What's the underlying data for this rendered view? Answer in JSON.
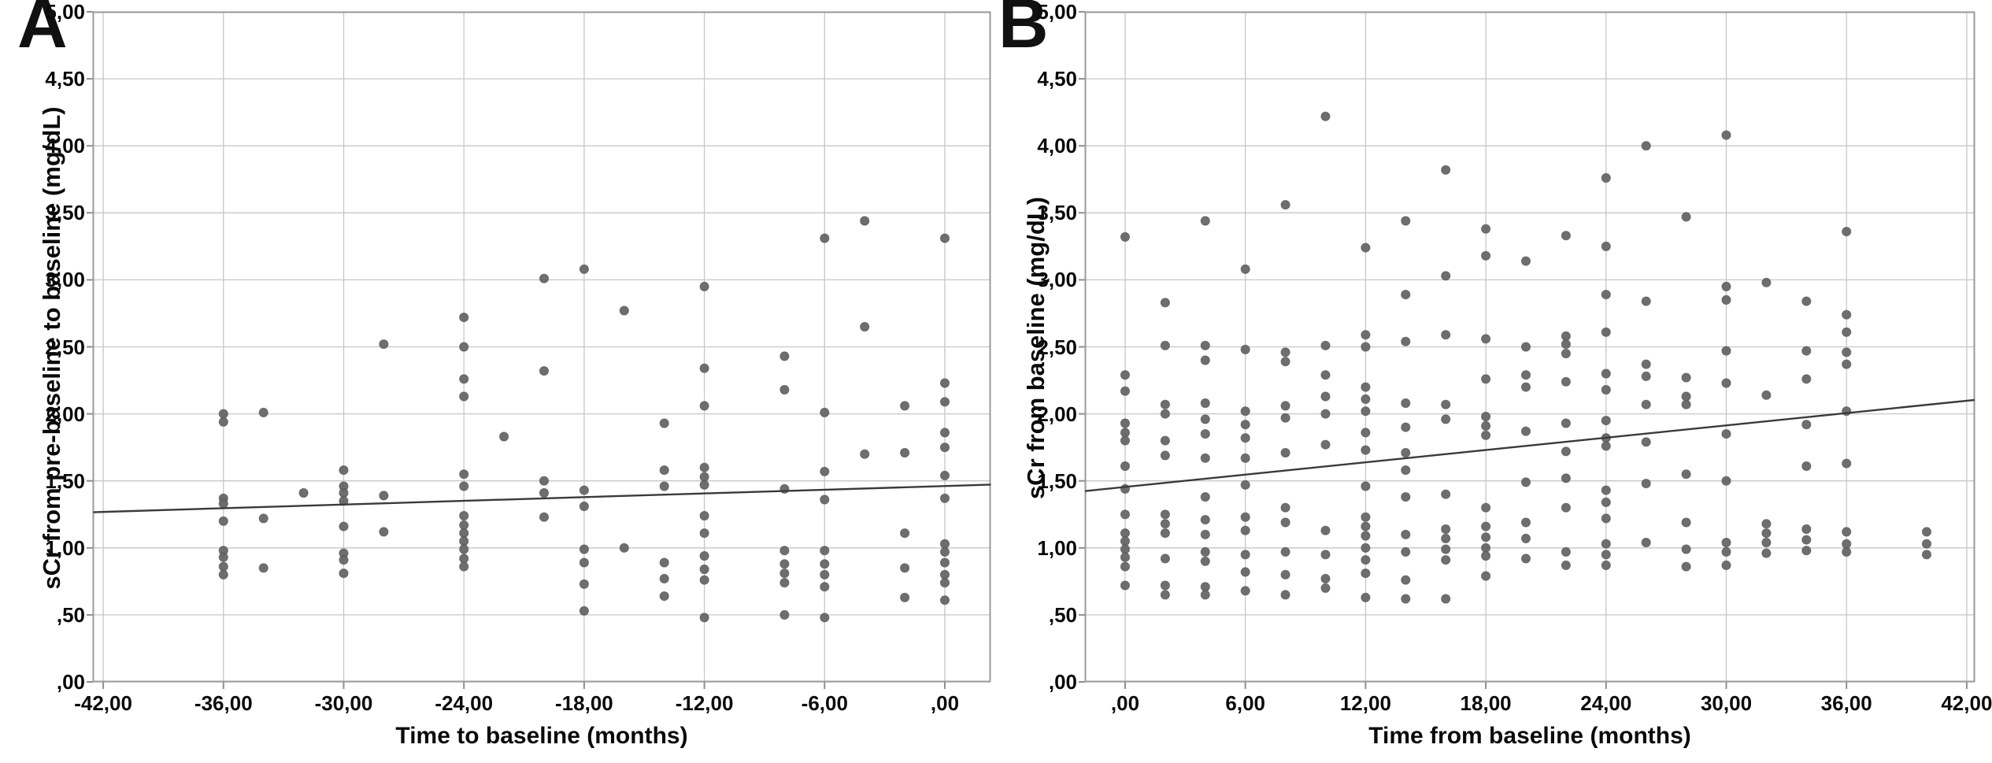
{
  "figure": {
    "background": "#ffffff",
    "point_color": "#666666",
    "point_stroke": "#505050",
    "grid_color": "#c7c7c7",
    "frame_color": "#9a9a9a",
    "tick_color": "#8f8f8f",
    "fit_line_color": "#3a3a3a",
    "text_color": "#0a0a0a"
  },
  "chart_data": [
    {
      "type": "scatter",
      "panel_letter": "A",
      "xlabel": "Time to baseline (months)",
      "ylabel": "sCr from pre-baseline to baseline (mg/dL)",
      "xlim": [
        -42.5,
        2.3
      ],
      "ylim": [
        0,
        5
      ],
      "grid": true,
      "x_ticks": [
        -42,
        -36,
        -30,
        -24,
        -18,
        -12,
        -6,
        0
      ],
      "x_tick_labels": [
        "-42,00",
        "-36,00",
        "-30,00",
        "-24,00",
        "-18,00",
        "-12,00",
        "-6,00",
        ",00"
      ],
      "y_ticks": [
        5,
        4.5,
        4,
        3.5,
        3,
        2.5,
        2,
        1.5,
        1,
        0.5,
        0
      ],
      "y_tick_labels": [
        "5,00",
        "4,50",
        "4,00",
        "3,50",
        "3,00",
        "2,50",
        "2,00",
        "1,50",
        "1,00",
        ",50",
        ",00"
      ],
      "fit_line": {
        "x1": -42.5,
        "y1": 1.266,
        "x2": 2.3,
        "y2": 1.472
      },
      "points": [
        [
          -36,
          2.0
        ],
        [
          -36,
          1.94
        ],
        [
          -36,
          1.37
        ],
        [
          -36,
          1.33
        ],
        [
          -36,
          1.2
        ],
        [
          -36,
          0.98
        ],
        [
          -36,
          0.93
        ],
        [
          -36,
          0.86
        ],
        [
          -36,
          0.8
        ],
        [
          -34,
          2.01
        ],
        [
          -34,
          1.22
        ],
        [
          -34,
          0.85
        ],
        [
          -32,
          1.41
        ],
        [
          -30,
          1.58
        ],
        [
          -30,
          1.46
        ],
        [
          -30,
          1.41
        ],
        [
          -30,
          1.35
        ],
        [
          -30,
          1.16
        ],
        [
          -30,
          0.96
        ],
        [
          -30,
          0.91
        ],
        [
          -30,
          0.81
        ],
        [
          -28,
          2.52
        ],
        [
          -28,
          1.39
        ],
        [
          -28,
          1.12
        ],
        [
          -24,
          2.72
        ],
        [
          -24,
          2.5
        ],
        [
          -24,
          2.26
        ],
        [
          -24,
          2.13
        ],
        [
          -24,
          1.55
        ],
        [
          -24,
          1.46
        ],
        [
          -24,
          1.24
        ],
        [
          -24,
          1.17
        ],
        [
          -24,
          1.11
        ],
        [
          -24,
          1.05
        ],
        [
          -24,
          0.99
        ],
        [
          -24,
          0.92
        ],
        [
          -24,
          0.86
        ],
        [
          -22,
          1.83
        ],
        [
          -20,
          3.01
        ],
        [
          -20,
          2.32
        ],
        [
          -20,
          1.5
        ],
        [
          -20,
          1.41
        ],
        [
          -20,
          1.23
        ],
        [
          -18,
          3.08
        ],
        [
          -18,
          1.43
        ],
        [
          -18,
          1.31
        ],
        [
          -18,
          0.99
        ],
        [
          -18,
          0.89
        ],
        [
          -18,
          0.73
        ],
        [
          -18,
          0.53
        ],
        [
          -16,
          2.77
        ],
        [
          -16,
          1.0
        ],
        [
          -14,
          1.93
        ],
        [
          -14,
          1.58
        ],
        [
          -14,
          1.46
        ],
        [
          -14,
          0.89
        ],
        [
          -14,
          0.77
        ],
        [
          -14,
          0.64
        ],
        [
          -12,
          2.95
        ],
        [
          -12,
          2.34
        ],
        [
          -12,
          2.06
        ],
        [
          -12,
          1.6
        ],
        [
          -12,
          1.53
        ],
        [
          -12,
          1.47
        ],
        [
          -12,
          1.24
        ],
        [
          -12,
          1.11
        ],
        [
          -12,
          0.94
        ],
        [
          -12,
          0.84
        ],
        [
          -12,
          0.76
        ],
        [
          -12,
          0.48
        ],
        [
          -8,
          2.43
        ],
        [
          -8,
          2.18
        ],
        [
          -8,
          1.44
        ],
        [
          -8,
          0.98
        ],
        [
          -8,
          0.88
        ],
        [
          -8,
          0.81
        ],
        [
          -8,
          0.74
        ],
        [
          -8,
          0.5
        ],
        [
          -6,
          3.31
        ],
        [
          -6,
          2.01
        ],
        [
          -6,
          1.57
        ],
        [
          -6,
          1.36
        ],
        [
          -6,
          0.98
        ],
        [
          -6,
          0.88
        ],
        [
          -6,
          0.8
        ],
        [
          -6,
          0.71
        ],
        [
          -6,
          0.48
        ],
        [
          -4,
          3.44
        ],
        [
          -4,
          2.65
        ],
        [
          -4,
          1.7
        ],
        [
          -2,
          2.06
        ],
        [
          -2,
          1.71
        ],
        [
          -2,
          1.11
        ],
        [
          -2,
          0.85
        ],
        [
          -2,
          0.63
        ],
        [
          0,
          3.31
        ],
        [
          0,
          2.23
        ],
        [
          0,
          2.09
        ],
        [
          0,
          1.86
        ],
        [
          0,
          1.75
        ],
        [
          0,
          1.54
        ],
        [
          0,
          1.37
        ],
        [
          0,
          1.03
        ],
        [
          0,
          0.97
        ],
        [
          0,
          0.89
        ],
        [
          0,
          0.8
        ],
        [
          0,
          0.74
        ],
        [
          0,
          0.61
        ]
      ]
    },
    {
      "type": "scatter",
      "panel_letter": "B",
      "xlabel": "Time from baseline (months)",
      "ylabel": "sCr from baseline (mg/dL)",
      "xlim": [
        -2.0,
        42.4
      ],
      "ylim": [
        0,
        5
      ],
      "grid": true,
      "x_ticks": [
        0,
        6,
        12,
        18,
        24,
        30,
        36,
        42
      ],
      "x_tick_labels": [
        ",00",
        "6,00",
        "12,00",
        "18,00",
        "24,00",
        "30,00",
        "36,00",
        "42,00"
      ],
      "y_ticks": [
        5,
        4.5,
        4,
        3.5,
        3,
        2.5,
        2,
        1.5,
        1,
        0.5,
        0
      ],
      "y_tick_labels": [
        "5,00",
        "4,50",
        "4,00",
        "3,50",
        "3,00",
        "2,50",
        "2,00",
        "1,50",
        "1,00",
        ",50",
        ",00"
      ],
      "fit_line": {
        "x1": -2.0,
        "y1": 1.424,
        "x2": 42.4,
        "y2": 2.104
      },
      "points": [
        [
          0,
          3.32
        ],
        [
          0,
          2.29
        ],
        [
          0,
          2.17
        ],
        [
          0,
          1.93
        ],
        [
          0,
          1.86
        ],
        [
          0,
          1.8
        ],
        [
          0,
          1.61
        ],
        [
          0,
          1.44
        ],
        [
          0,
          1.25
        ],
        [
          0,
          1.11
        ],
        [
          0,
          1.05
        ],
        [
          0,
          0.99
        ],
        [
          0,
          0.93
        ],
        [
          0,
          0.86
        ],
        [
          0,
          0.72
        ],
        [
          2,
          2.83
        ],
        [
          2,
          2.51
        ],
        [
          2,
          2.07
        ],
        [
          2,
          2.0
        ],
        [
          2,
          1.8
        ],
        [
          2,
          1.69
        ],
        [
          2,
          1.25
        ],
        [
          2,
          1.18
        ],
        [
          2,
          1.11
        ],
        [
          2,
          0.92
        ],
        [
          2,
          0.72
        ],
        [
          2,
          0.65
        ],
        [
          4,
          3.44
        ],
        [
          4,
          2.51
        ],
        [
          4,
          2.4
        ],
        [
          4,
          2.08
        ],
        [
          4,
          1.96
        ],
        [
          4,
          1.85
        ],
        [
          4,
          1.67
        ],
        [
          4,
          1.38
        ],
        [
          4,
          1.21
        ],
        [
          4,
          1.1
        ],
        [
          4,
          0.97
        ],
        [
          4,
          0.9
        ],
        [
          4,
          0.71
        ],
        [
          4,
          0.65
        ],
        [
          6,
          3.08
        ],
        [
          6,
          2.48
        ],
        [
          6,
          2.02
        ],
        [
          6,
          1.92
        ],
        [
          6,
          1.82
        ],
        [
          6,
          1.67
        ],
        [
          6,
          1.47
        ],
        [
          6,
          1.23
        ],
        [
          6,
          1.13
        ],
        [
          6,
          0.95
        ],
        [
          6,
          0.82
        ],
        [
          6,
          0.68
        ],
        [
          8,
          3.56
        ],
        [
          8,
          2.46
        ],
        [
          8,
          2.39
        ],
        [
          8,
          2.06
        ],
        [
          8,
          1.97
        ],
        [
          8,
          1.71
        ],
        [
          8,
          1.3
        ],
        [
          8,
          1.19
        ],
        [
          8,
          0.97
        ],
        [
          8,
          0.8
        ],
        [
          8,
          0.65
        ],
        [
          10,
          4.22
        ],
        [
          10,
          2.51
        ],
        [
          10,
          2.29
        ],
        [
          10,
          2.13
        ],
        [
          10,
          2.0
        ],
        [
          10,
          1.77
        ],
        [
          10,
          1.13
        ],
        [
          10,
          0.95
        ],
        [
          10,
          0.77
        ],
        [
          10,
          0.7
        ],
        [
          12,
          3.24
        ],
        [
          12,
          2.59
        ],
        [
          12,
          2.5
        ],
        [
          12,
          2.2
        ],
        [
          12,
          2.11
        ],
        [
          12,
          2.02
        ],
        [
          12,
          1.86
        ],
        [
          12,
          1.73
        ],
        [
          12,
          1.46
        ],
        [
          12,
          1.23
        ],
        [
          12,
          1.16
        ],
        [
          12,
          1.09
        ],
        [
          12,
          1.0
        ],
        [
          12,
          0.91
        ],
        [
          12,
          0.81
        ],
        [
          12,
          0.63
        ],
        [
          14,
          3.44
        ],
        [
          14,
          2.89
        ],
        [
          14,
          2.54
        ],
        [
          14,
          2.08
        ],
        [
          14,
          1.9
        ],
        [
          14,
          1.71
        ],
        [
          14,
          1.58
        ],
        [
          14,
          1.38
        ],
        [
          14,
          1.1
        ],
        [
          14,
          0.97
        ],
        [
          14,
          0.76
        ],
        [
          14,
          0.62
        ],
        [
          16,
          3.82
        ],
        [
          16,
          3.03
        ],
        [
          16,
          2.59
        ],
        [
          16,
          2.07
        ],
        [
          16,
          1.96
        ],
        [
          16,
          1.4
        ],
        [
          16,
          1.14
        ],
        [
          16,
          1.07
        ],
        [
          16,
          0.99
        ],
        [
          16,
          0.91
        ],
        [
          16,
          0.62
        ],
        [
          18,
          3.38
        ],
        [
          18,
          3.18
        ],
        [
          18,
          2.56
        ],
        [
          18,
          2.26
        ],
        [
          18,
          1.98
        ],
        [
          18,
          1.91
        ],
        [
          18,
          1.84
        ],
        [
          18,
          1.3
        ],
        [
          18,
          1.16
        ],
        [
          18,
          1.08
        ],
        [
          18,
          1.0
        ],
        [
          18,
          0.94
        ],
        [
          18,
          0.79
        ],
        [
          20,
          3.14
        ],
        [
          20,
          2.5
        ],
        [
          20,
          2.29
        ],
        [
          20,
          2.2
        ],
        [
          20,
          1.87
        ],
        [
          20,
          1.49
        ],
        [
          20,
          1.19
        ],
        [
          20,
          1.07
        ],
        [
          20,
          0.92
        ],
        [
          22,
          3.33
        ],
        [
          22,
          2.58
        ],
        [
          22,
          2.52
        ],
        [
          22,
          2.45
        ],
        [
          22,
          2.24
        ],
        [
          22,
          1.93
        ],
        [
          22,
          1.72
        ],
        [
          22,
          1.52
        ],
        [
          22,
          1.3
        ],
        [
          22,
          0.97
        ],
        [
          22,
          0.87
        ],
        [
          24,
          3.76
        ],
        [
          24,
          3.25
        ],
        [
          24,
          2.89
        ],
        [
          24,
          2.61
        ],
        [
          24,
          2.3
        ],
        [
          24,
          2.18
        ],
        [
          24,
          1.95
        ],
        [
          24,
          1.82
        ],
        [
          24,
          1.76
        ],
        [
          24,
          1.43
        ],
        [
          24,
          1.34
        ],
        [
          24,
          1.22
        ],
        [
          24,
          1.03
        ],
        [
          24,
          0.95
        ],
        [
          24,
          0.87
        ],
        [
          26,
          4.0
        ],
        [
          26,
          2.84
        ],
        [
          26,
          2.37
        ],
        [
          26,
          2.28
        ],
        [
          26,
          2.07
        ],
        [
          26,
          1.79
        ],
        [
          26,
          1.48
        ],
        [
          26,
          1.04
        ],
        [
          28,
          3.47
        ],
        [
          28,
          2.27
        ],
        [
          28,
          2.13
        ],
        [
          28,
          2.07
        ],
        [
          28,
          1.55
        ],
        [
          28,
          1.19
        ],
        [
          28,
          0.99
        ],
        [
          28,
          0.86
        ],
        [
          30,
          4.08
        ],
        [
          30,
          2.95
        ],
        [
          30,
          2.85
        ],
        [
          30,
          2.47
        ],
        [
          30,
          2.23
        ],
        [
          30,
          1.85
        ],
        [
          30,
          1.5
        ],
        [
          30,
          1.04
        ],
        [
          30,
          0.97
        ],
        [
          30,
          0.87
        ],
        [
          32,
          2.98
        ],
        [
          32,
          2.14
        ],
        [
          32,
          1.18
        ],
        [
          32,
          1.11
        ],
        [
          32,
          1.04
        ],
        [
          32,
          0.96
        ],
        [
          34,
          2.84
        ],
        [
          34,
          2.47
        ],
        [
          34,
          2.26
        ],
        [
          34,
          1.92
        ],
        [
          34,
          1.61
        ],
        [
          34,
          1.14
        ],
        [
          34,
          1.06
        ],
        [
          34,
          0.98
        ],
        [
          36,
          3.36
        ],
        [
          36,
          2.74
        ],
        [
          36,
          2.61
        ],
        [
          36,
          2.46
        ],
        [
          36,
          2.37
        ],
        [
          36,
          2.02
        ],
        [
          36,
          1.63
        ],
        [
          36,
          1.12
        ],
        [
          36,
          1.03
        ],
        [
          36,
          0.97
        ],
        [
          40,
          1.12
        ],
        [
          40,
          1.03
        ],
        [
          40,
          0.95
        ]
      ]
    }
  ]
}
